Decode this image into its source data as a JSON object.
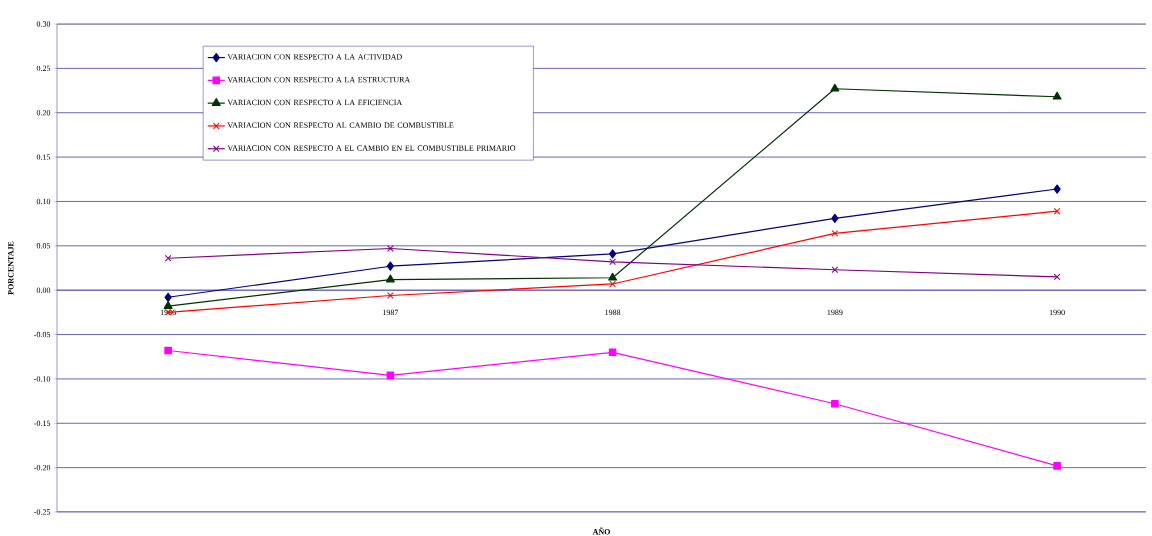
{
  "chart_data": {
    "type": "line",
    "xlabel": "AÑO",
    "ylabel": "PORCENTAJE",
    "categories": [
      "1986",
      "1987",
      "1988",
      "1989",
      "1990"
    ],
    "ylim": [
      -0.25,
      0.3
    ],
    "yticks": [
      {
        "value": -0.25,
        "label": "-0.25"
      },
      {
        "value": -0.2,
        "label": "-0.20"
      },
      {
        "value": -0.15,
        "label": "-0.15"
      },
      {
        "value": -0.1,
        "label": "-0.10"
      },
      {
        "value": -0.05,
        "label": "-0.05"
      },
      {
        "value": 0,
        "label": "0.00"
      },
      {
        "value": 0.05,
        "label": "0.05"
      },
      {
        "value": 0.1,
        "label": "0.10"
      },
      {
        "value": 0.15,
        "label": "0.15"
      },
      {
        "value": 0.2,
        "label": "0.20"
      },
      {
        "value": 0.25,
        "label": "0.25"
      },
      {
        "value": 0.3,
        "label": "0.30"
      }
    ],
    "grid": "y",
    "legend": "top left",
    "line_style": "solid",
    "series": [
      {
        "name": "VARIACION  CON RESPECTO A LA ACTIVIDAD",
        "color": "#000080",
        "marker": "diamond",
        "values": [
          -0.008,
          0.027,
          0.041,
          0.081,
          0.114
        ]
      },
      {
        "name": "VARIACION CON RESPECTO A LA ESTRUCTURA",
        "color": "#ff00ff",
        "marker": "square",
        "values": [
          -0.068,
          -0.096,
          -0.07,
          -0.128,
          -0.198
        ]
      },
      {
        "name": "VARIACION CON RESPECTO A LA EFICIENCIA",
        "color": "#003300",
        "marker": "triangle",
        "values": [
          -0.018,
          0.012,
          0.014,
          0.227,
          0.218
        ]
      },
      {
        "name": "VARIACION CON RESPECTO AL CAMBIO DE COMBUSTIBLE",
        "color": "#ff0000",
        "marker": "cross",
        "values": [
          -0.025,
          -0.006,
          0.007,
          0.064,
          0.089
        ]
      },
      {
        "name": "VARIACION CON RESPECTO A EL CAMBIO EN EL COMBUSTIBLE PRIMARIO",
        "color": "#800080",
        "marker": "cross",
        "values": [
          0.036,
          0.047,
          0.032,
          0.023,
          0.015
        ]
      }
    ]
  }
}
